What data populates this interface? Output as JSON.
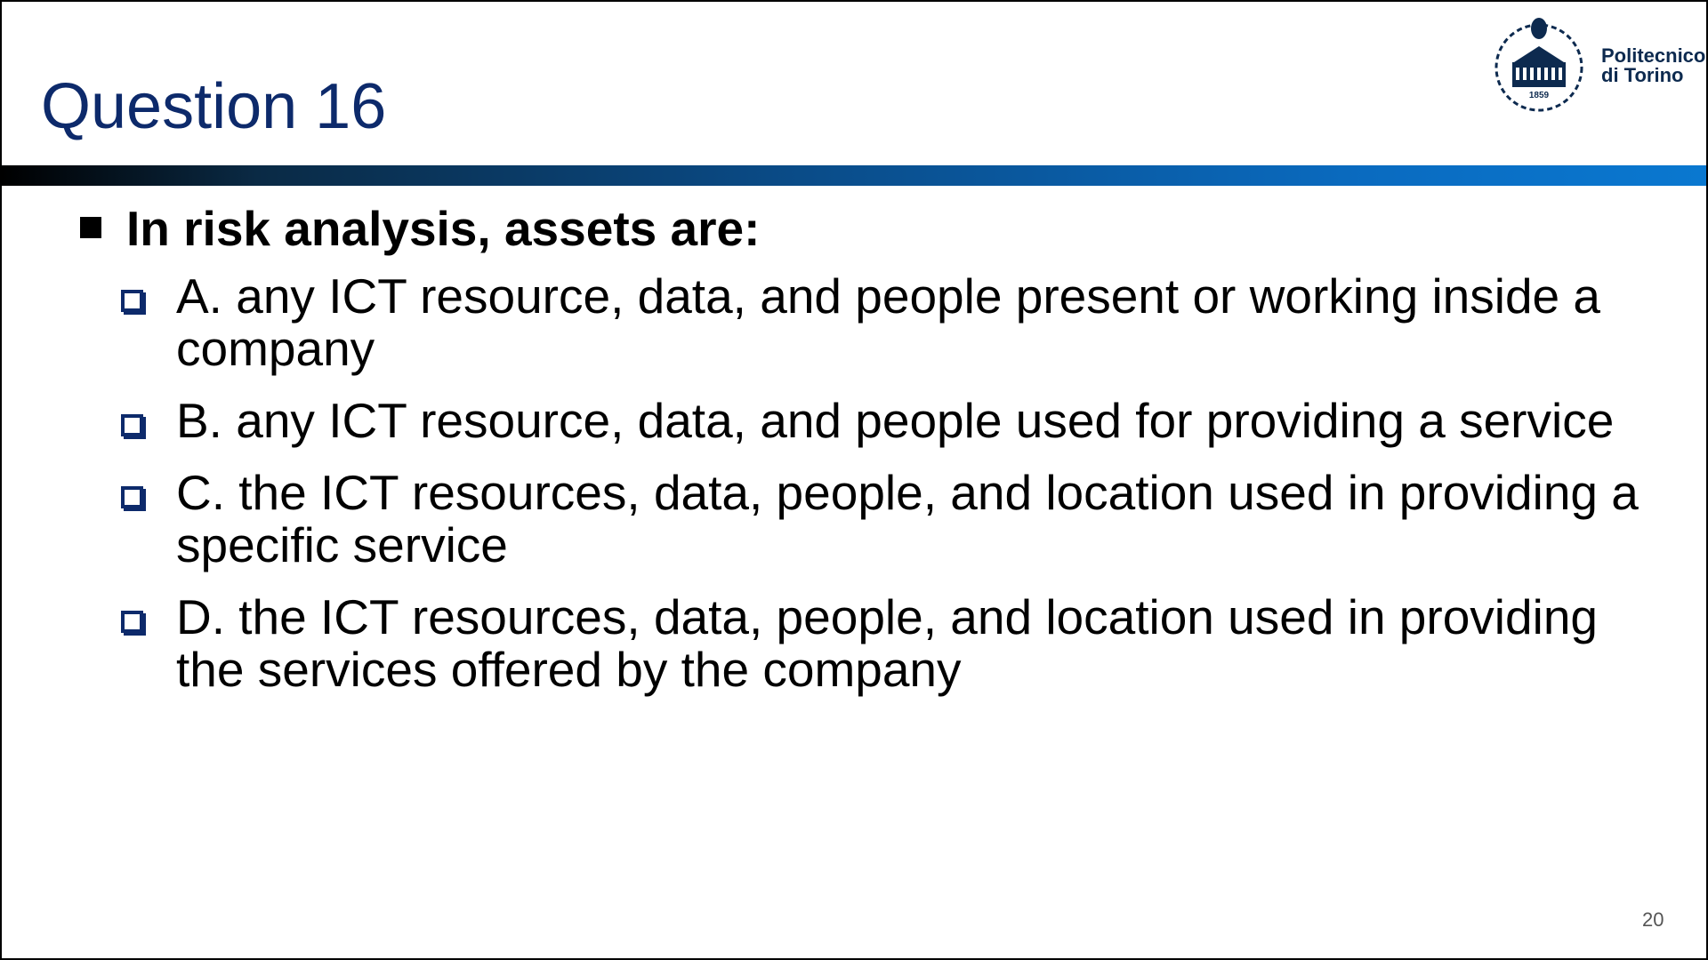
{
  "slide": {
    "title": "Question 16",
    "logo": {
      "name": "Politecnico",
      "name2": "di Torino",
      "year": "1859"
    },
    "question": "In risk analysis, assets are:",
    "options": [
      "A. any ICT resource, data, and people present or working inside a company",
      "B. any ICT resource, data, and people used for providing a service",
      "C. the ICT resources, data, people, and location used in providing a specific service",
      "D. the ICT resources, data, people, and location used in providing the services offered by the company"
    ],
    "page_number": "20"
  },
  "colors": {
    "title": "#0d2a6b",
    "bar_start": "#000000",
    "bar_end": "#0a78d0"
  }
}
